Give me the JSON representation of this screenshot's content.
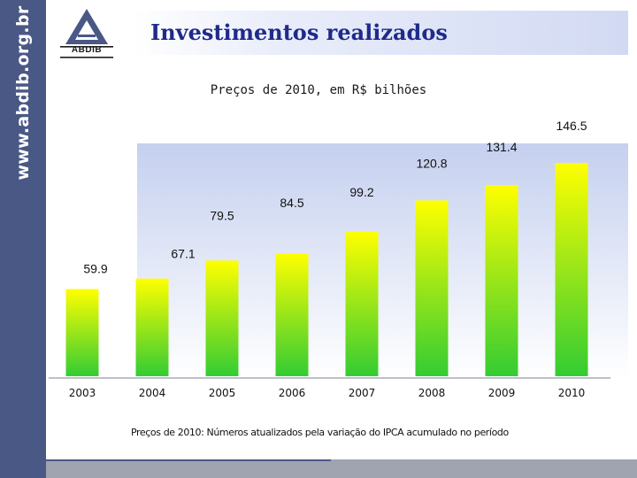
{
  "sidebar": {
    "url": "www.abdib.org.br"
  },
  "header": {
    "title": "Investimentos realizados",
    "logo_text": "ABDIB"
  },
  "footnote": "Preços de 2010: Números atualizados pela variação do IPCA acumulado no período",
  "colors": {
    "sidebar": "#4a5886",
    "title": "#1f2a8a",
    "bar_top": "#ffff00",
    "bar_bottom": "#33cc33",
    "plot_bg_top": "#c5d0ef",
    "plot_bg_bottom": "#ffffff"
  },
  "chart_data": {
    "type": "bar",
    "title": "Preços de 2010, em R$ bilhões",
    "categories": [
      "2003",
      "2004",
      "2005",
      "2006",
      "2007",
      "2008",
      "2009",
      "2010"
    ],
    "values": [
      59.9,
      67.1,
      79.5,
      84.5,
      99.2,
      120.8,
      131.4,
      146.5
    ],
    "data_labels": [
      "59.9",
      "67.1",
      "79.5",
      "84.5",
      "99.2",
      "120.8",
      "131.4",
      "146.5"
    ],
    "xlabel": "",
    "ylabel": "",
    "ylim": [
      0,
      160
    ],
    "grid": false,
    "legend": "none"
  }
}
